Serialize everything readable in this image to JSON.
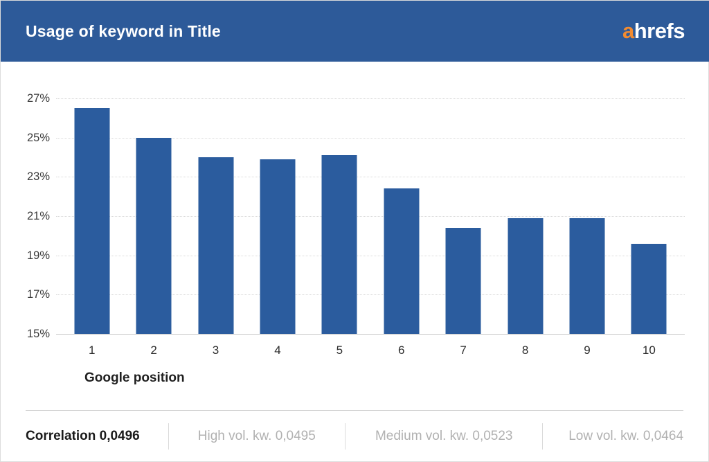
{
  "header": {
    "title": "Usage of keyword in Title",
    "logo_first_letter": "a",
    "logo_rest": "hrefs"
  },
  "colors": {
    "header_bg": "#2d5a99",
    "bar": "#2b5c9e",
    "logo_accent_orange": "#f28b30",
    "gridline": "#d8d8d8",
    "footer_muted_text": "#b1b1b1"
  },
  "chart_data": {
    "type": "bar",
    "title": "Usage of keyword in Title",
    "categories": [
      "1",
      "2",
      "3",
      "4",
      "5",
      "6",
      "7",
      "8",
      "9",
      "10"
    ],
    "values": [
      26.5,
      25.0,
      24.0,
      23.9,
      24.1,
      22.4,
      20.4,
      20.9,
      20.9,
      19.6
    ],
    "xlabel": "Google position",
    "ylabel": "",
    "ylim": [
      15,
      27
    ],
    "yticks": [
      27,
      25,
      23,
      21,
      19,
      17,
      15
    ],
    "ytick_suffix": "%",
    "grid": "horizontal dotted",
    "legend": "none"
  },
  "footer": {
    "correlation": "Correlation 0,0496",
    "high": "High vol. kw. 0,0495",
    "medium": "Medium vol. kw. 0,0523",
    "low": "Low vol. kw. 0,0464"
  }
}
